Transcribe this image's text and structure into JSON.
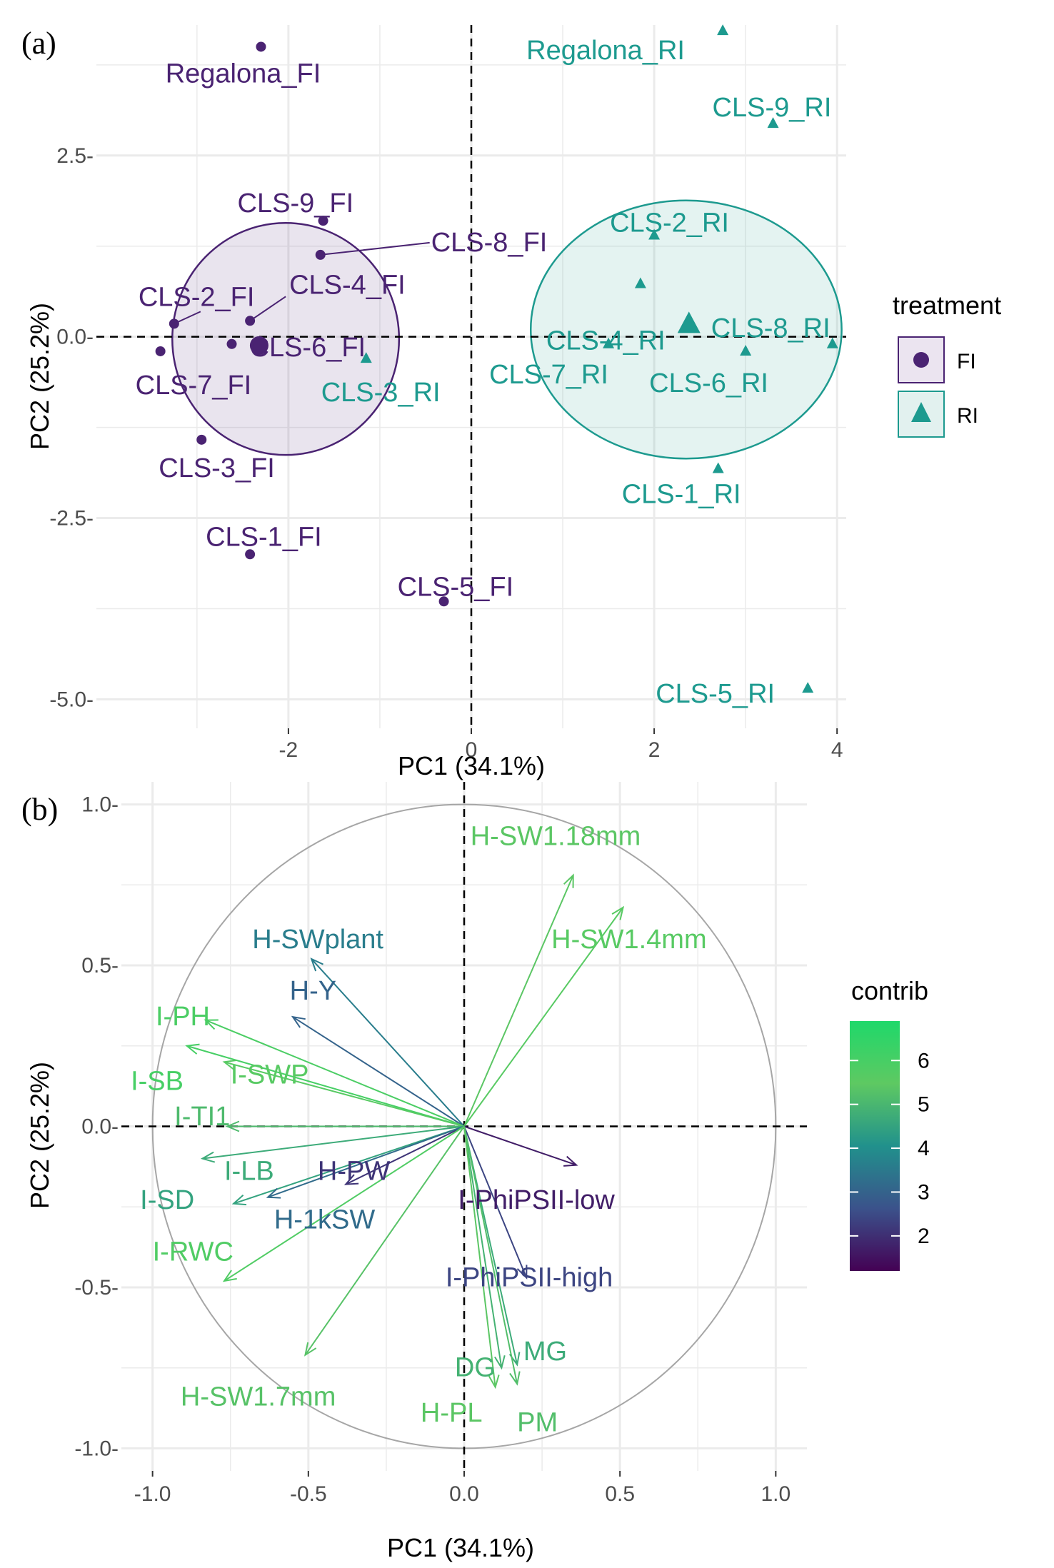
{
  "colors": {
    "FI": "#4a2372",
    "RI": "#1d9a8f"
  },
  "chart_data": [
    {
      "panel_label": "(a)",
      "type": "scatter",
      "title": "",
      "xlabel": "PC1 (34.1%)",
      "ylabel": "PC2 (25.2%)",
      "xlim": [
        -4.1,
        4.1
      ],
      "ylim": [
        -5.4,
        4.3
      ],
      "xticks": [
        -2,
        0,
        2,
        4
      ],
      "xtick_labels": [
        "-2",
        "0",
        "2",
        "4"
      ],
      "yticks": [
        2.5,
        0,
        -2.5,
        -5
      ],
      "ytick_labels": [
        "2.5-",
        "0.0-",
        "-2.5-",
        "-5.0-"
      ],
      "grid": true,
      "legend": {
        "title": "treatment",
        "position": "right",
        "entries": [
          {
            "label": "FI",
            "series": "FI"
          },
          {
            "label": "RI",
            "series": "RI"
          }
        ]
      },
      "series": [
        {
          "name": "FI",
          "marker": "circle",
          "points": [
            {
              "label": "Regalona_FI",
              "x": -2.3,
              "y": 4.0
            },
            {
              "label": "CLS-9_FI",
              "x": -1.62,
              "y": 1.6
            },
            {
              "label": "CLS-8_FI",
              "x": -1.65,
              "y": 1.13
            },
            {
              "label": "CLS-2_FI",
              "x": -3.25,
              "y": 0.18
            },
            {
              "label": "CLS-4_FI",
              "x": -2.42,
              "y": 0.22
            },
            {
              "label": "CLS-6_FI",
              "x": -2.62,
              "y": -0.1
            },
            {
              "label": "CLS-7_FI",
              "x": -3.4,
              "y": -0.2
            },
            {
              "label": "CLS-3_FI",
              "x": -2.95,
              "y": -1.42
            },
            {
              "label": "CLS-1_FI",
              "x": -2.42,
              "y": -3.0
            },
            {
              "label": "CLS-5_FI",
              "x": -0.3,
              "y": -3.65
            }
          ],
          "centroid": {
            "x": -2.32,
            "y": -0.12
          },
          "ellipse": {
            "cx": -2.03,
            "cy": -0.03,
            "rx": 1.24,
            "ry": 1.6
          }
        },
        {
          "name": "RI",
          "marker": "triangle",
          "points": [
            {
              "label": "Regalona_RI",
              "x": 2.75,
              "y": 4.22
            },
            {
              "label": "CLS-9_RI",
              "x": 3.3,
              "y": 2.94
            },
            {
              "label": "CLS-2_RI",
              "x": 2.0,
              "y": 1.4
            },
            {
              "label": "CLS-4_RI",
              "x": 1.85,
              "y": 0.73
            },
            {
              "label": "CLS-8_RI",
              "x": 3.95,
              "y": -0.1
            },
            {
              "label": "CLS-6_RI",
              "x": 3.0,
              "y": -0.2
            },
            {
              "label": "CLS-7_RI",
              "x": 1.5,
              "y": -0.1
            },
            {
              "label": "CLS-3_RI",
              "x": -1.15,
              "y": -0.3
            },
            {
              "label": "CLS-1_RI",
              "x": 2.7,
              "y": -1.82
            },
            {
              "label": "CLS-5_RI",
              "x": 3.68,
              "y": -4.85
            }
          ],
          "centroid": {
            "x": 2.38,
            "y": 0.17
          },
          "ellipse": {
            "cx": 2.35,
            "cy": 0.1,
            "rx": 1.7,
            "ry": 1.78
          }
        }
      ]
    },
    {
      "panel_label": "(b)",
      "type": "biplot",
      "title": "",
      "xlabel": "PC1 (34.1%)",
      "ylabel": "PC2 (25.2%)",
      "xlim": [
        -1.1,
        1.1
      ],
      "ylim": [
        -1.07,
        1.07
      ],
      "xticks": [
        -1,
        -0.5,
        0,
        0.5,
        1
      ],
      "xtick_labels": [
        "-1.0",
        "-0.5",
        "0.0",
        "0.5",
        "1.0"
      ],
      "yticks": [
        1,
        0.5,
        0,
        -0.5,
        -1
      ],
      "ytick_labels": [
        "1.0-",
        "0.5-",
        "0.0-",
        "-0.5-",
        "-1.0-"
      ],
      "grid": true,
      "unit_circle": true,
      "legend": {
        "title": "contrib",
        "position": "right",
        "min": 1.2,
        "max": 6.9,
        "ticks": [
          2,
          3,
          4,
          5,
          6
        ],
        "tick_labels": [
          "2",
          "3",
          "4",
          "5",
          "6"
        ]
      },
      "variables": [
        {
          "label": "H-SW1.18mm",
          "x": 0.35,
          "y": 0.78,
          "contrib": 5.4
        },
        {
          "label": "H-SW1.4mm",
          "x": 0.51,
          "y": 0.68,
          "contrib": 5.6
        },
        {
          "label": "H-SWplant",
          "x": -0.49,
          "y": 0.52,
          "contrib": 3.6
        },
        {
          "label": "H-Y",
          "x": -0.55,
          "y": 0.34,
          "contrib": 3.0
        },
        {
          "label": "I-PH",
          "x": -0.83,
          "y": 0.33,
          "contrib": 5.9
        },
        {
          "label": "I-SB",
          "x": -0.89,
          "y": 0.25,
          "contrib": 6.0
        },
        {
          "label": "I-SWP",
          "x": -0.77,
          "y": 0.2,
          "contrib": 5.6
        },
        {
          "label": "I-TI1",
          "x": -0.76,
          "y": 0.0,
          "contrib": 5.1
        },
        {
          "label": "I-LB",
          "x": -0.84,
          "y": -0.1,
          "contrib": 4.7
        },
        {
          "label": "I-SD",
          "x": -0.74,
          "y": -0.24,
          "contrib": 4.5
        },
        {
          "label": "H-PW",
          "x": -0.38,
          "y": -0.18,
          "contrib": 2.1
        },
        {
          "label": "H-1kSW",
          "x": -0.63,
          "y": -0.22,
          "contrib": 3.2
        },
        {
          "label": "I-RWC",
          "x": -0.77,
          "y": -0.48,
          "contrib": 5.8
        },
        {
          "label": "H-SW1.7mm",
          "x": -0.51,
          "y": -0.71,
          "contrib": 5.3
        },
        {
          "label": "I-PhiPSII-low",
          "x": 0.36,
          "y": -0.12,
          "contrib": 1.7
        },
        {
          "label": "I-PhiPSII-high",
          "x": 0.2,
          "y": -0.47,
          "contrib": 2.4
        },
        {
          "label": "MG",
          "x": 0.17,
          "y": -0.74,
          "contrib": 4.7
        },
        {
          "label": "DG",
          "x": 0.12,
          "y": -0.75,
          "contrib": 4.9
        },
        {
          "label": "PM",
          "x": 0.17,
          "y": -0.8,
          "contrib": 5.2
        },
        {
          "label": "H-PL",
          "x": 0.1,
          "y": -0.81,
          "contrib": 5.4
        }
      ]
    }
  ]
}
